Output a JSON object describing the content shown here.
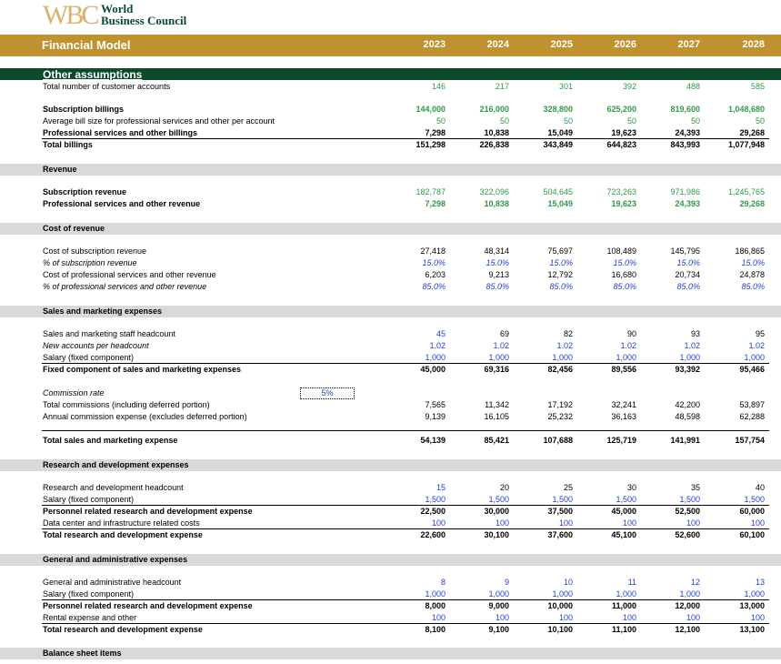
{
  "header": {
    "logo_letters": "WBC",
    "org_line1": "World",
    "org_line2": "Business Council",
    "title": "Financial Model",
    "years": [
      "2023",
      "2024",
      "2025",
      "2026",
      "2027",
      "2028"
    ]
  },
  "sections": [
    {
      "title": "Other assumptions",
      "rows": [
        {
          "label": "Total number of customer accounts",
          "values": [
            "146",
            "217",
            "301",
            "392",
            "488",
            "585"
          ]
        },
        {
          "label": "Subscription billings",
          "values": [
            "144,000",
            "216,000",
            "328,800",
            "625,200",
            "819,600",
            "1,048,680"
          ]
        },
        {
          "label": "Average bill size for professional services and other per account",
          "values": [
            "50",
            "50",
            "50",
            "50",
            "50",
            "50"
          ]
        },
        {
          "label": "Professional services and other billings",
          "values": [
            "7,298",
            "10,838",
            "15,049",
            "19,623",
            "24,393",
            "29,268"
          ]
        },
        {
          "label": "Total billings",
          "values": [
            "151,298",
            "226,838",
            "343,849",
            "644,823",
            "843,993",
            "1,077,948"
          ]
        }
      ]
    },
    {
      "title": "Revenue",
      "rows": [
        {
          "label": "Subscription revenue",
          "values": [
            "182,787",
            "322,096",
            "504,645",
            "723,263",
            "971,986",
            "1,245,765"
          ]
        },
        {
          "label": "Professional services and other revenue",
          "values": [
            "7,298",
            "10,838",
            "15,049",
            "19,623",
            "24,393",
            "29,268"
          ]
        }
      ]
    },
    {
      "title": "Cost of revenue",
      "rows": [
        {
          "label": "Cost of subscription revenue",
          "values": [
            "27,418",
            "48,314",
            "75,697",
            "108,489",
            "145,795",
            "186,865"
          ]
        },
        {
          "label": "% of subscription revenue",
          "values": [
            "15.0%",
            "15.0%",
            "15.0%",
            "15.0%",
            "15.0%",
            "15.0%"
          ]
        },
        {
          "label": "Cost of professional services and other revenue",
          "values": [
            "6,203",
            "9,213",
            "12,792",
            "16,680",
            "20,734",
            "24,878"
          ]
        },
        {
          "label": "% of professional services and other revenue",
          "values": [
            "85.0%",
            "85.0%",
            "85.0%",
            "85.0%",
            "85.0%",
            "85.0%"
          ]
        }
      ]
    },
    {
      "title": "Sales and marketing expenses",
      "rows": [
        {
          "label": "Sales and marketing staff headcount",
          "values": [
            "45",
            "69",
            "82",
            "90",
            "93",
            "95"
          ]
        },
        {
          "label": "New accounts per headcount",
          "values": [
            "1.02",
            "1.02",
            "1.02",
            "1.02",
            "1.02",
            "1.02"
          ]
        },
        {
          "label": "Salary (fixed component)",
          "values": [
            "1,000",
            "1,000",
            "1,000",
            "1,000",
            "1,000",
            "1,000"
          ]
        },
        {
          "label": "Fixed component of sales and marketing expenses",
          "values": [
            "45,000",
            "69,316",
            "82,456",
            "89,556",
            "93,392",
            "95,466"
          ]
        },
        {
          "label": "Commission rate",
          "input": "5%",
          "values": []
        },
        {
          "label": "Total commissions (including deferred portion)",
          "values": [
            "7,565",
            "11,342",
            "17,192",
            "32,241",
            "42,200",
            "53,897"
          ]
        },
        {
          "label": "Annual commission expense (excludes deferred portion)",
          "values": [
            "9,139",
            "16,105",
            "25,232",
            "36,163",
            "48,598",
            "62,288"
          ]
        },
        {
          "label": "Total sales and marketing expense",
          "values": [
            "54,139",
            "85,421",
            "107,688",
            "125,719",
            "141,991",
            "157,754"
          ]
        }
      ]
    },
    {
      "title": "Research and  development expenses",
      "rows": [
        {
          "label": "Research and development headcount",
          "values": [
            "15",
            "20",
            "25",
            "30",
            "35",
            "40"
          ]
        },
        {
          "label": "Salary (fixed component)",
          "values": [
            "1,500",
            "1,500",
            "1,500",
            "1,500",
            "1,500",
            "1,500"
          ]
        },
        {
          "label": "Personnel related research and development expense",
          "values": [
            "22,500",
            "30,000",
            "37,500",
            "45,000",
            "52,500",
            "60,000"
          ]
        },
        {
          "label": "Data center and infrastructure related costs",
          "values": [
            "100",
            "100",
            "100",
            "100",
            "100",
            "100"
          ]
        },
        {
          "label": "Total research and development expense",
          "values": [
            "22,600",
            "30,100",
            "37,600",
            "45,100",
            "52,600",
            "60,100"
          ]
        }
      ]
    },
    {
      "title": "General and administrative expenses",
      "rows": [
        {
          "label": "General and administrative headcount",
          "values": [
            "8",
            "9",
            "10",
            "11",
            "12",
            "13"
          ]
        },
        {
          "label": "Salary (fixed component)",
          "values": [
            "1,000",
            "1,000",
            "1,000",
            "1,000",
            "1,000",
            "1,000"
          ]
        },
        {
          "label": "Personnel related research and development expense",
          "values": [
            "8,000",
            "9,000",
            "10,000",
            "11,000",
            "12,000",
            "13,000"
          ]
        },
        {
          "label": "Rental expense and other",
          "values": [
            "100",
            "100",
            "100",
            "100",
            "100",
            "100"
          ]
        },
        {
          "label": "Total research and development expense",
          "values": [
            "8,100",
            "9,100",
            "10,100",
            "11,100",
            "12,100",
            "13,100"
          ]
        }
      ]
    },
    {
      "title": "Balance sheet items",
      "rows": []
    }
  ]
}
